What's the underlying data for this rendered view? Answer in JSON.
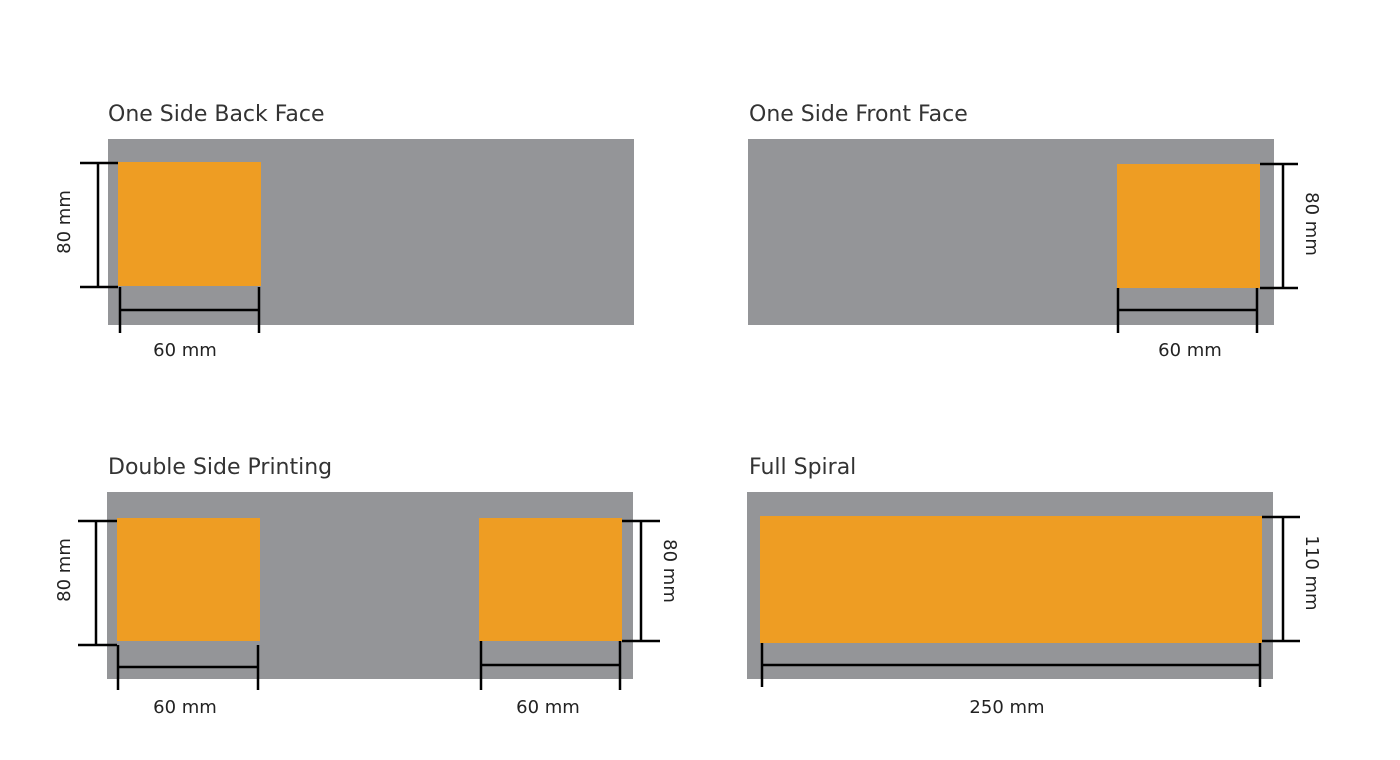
{
  "panels": [
    {
      "title": "One Side Back Face",
      "dims": [
        "80 mm",
        "60 mm"
      ]
    },
    {
      "title": "One Side Front Face",
      "dims": [
        "80 mm",
        "60 mm"
      ]
    },
    {
      "title": "Double Side Printing",
      "dims": [
        "80 mm",
        "60 mm",
        "80 mm",
        "60 mm"
      ]
    },
    {
      "title": "Full Spiral",
      "dims": [
        "110 mm",
        "250 mm"
      ]
    }
  ]
}
